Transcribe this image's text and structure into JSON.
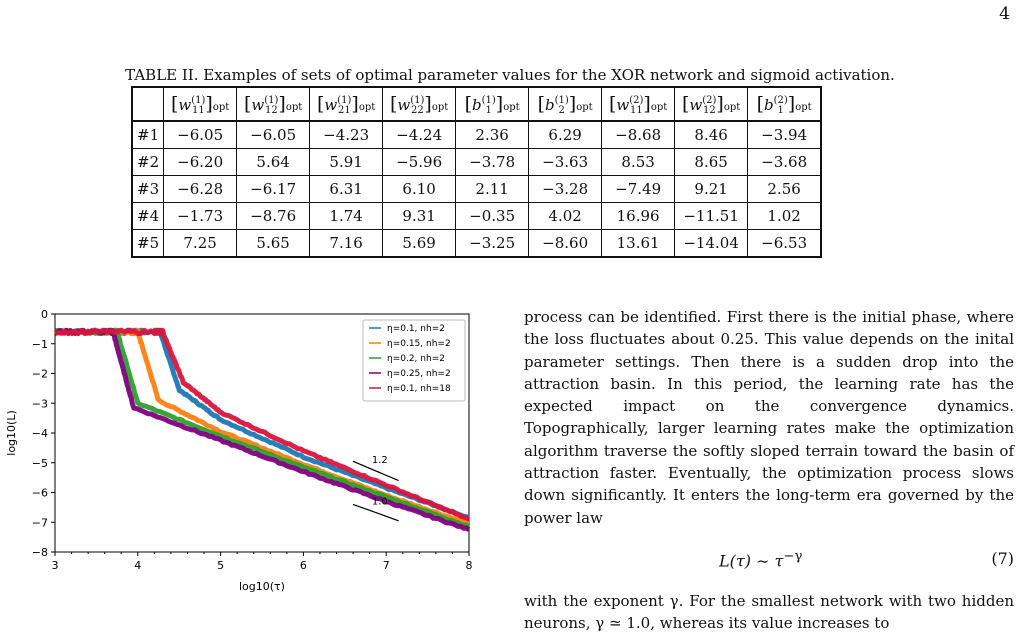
{
  "page_number": "4",
  "table": {
    "caption": "TABLE II. Examples of sets of optimal parameter values for the XOR network and sigmoid activation.",
    "headers": [
      {
        "sym": "w",
        "sup": "(1)",
        "sub": "11",
        "opt": "opt"
      },
      {
        "sym": "w",
        "sup": "(1)",
        "sub": "12",
        "opt": "opt"
      },
      {
        "sym": "w",
        "sup": "(1)",
        "sub": "21",
        "opt": "opt"
      },
      {
        "sym": "w",
        "sup": "(1)",
        "sub": "22",
        "opt": "opt"
      },
      {
        "sym": "b",
        "sup": "(1)",
        "sub": "1",
        "opt": "opt"
      },
      {
        "sym": "b",
        "sup": "(1)",
        "sub": "2",
        "opt": "opt"
      },
      {
        "sym": "w",
        "sup": "(2)",
        "sub": "11",
        "opt": "opt"
      },
      {
        "sym": "w",
        "sup": "(2)",
        "sub": "12",
        "opt": "opt"
      },
      {
        "sym": "b",
        "sup": "(2)",
        "sub": "1",
        "opt": "opt"
      }
    ],
    "rows": [
      {
        "label": "#1",
        "values": [
          "−6.05",
          "−6.05",
          "−4.23",
          "−4.24",
          "2.36",
          "6.29",
          "−8.68",
          "8.46",
          "−3.94"
        ]
      },
      {
        "label": "#2",
        "values": [
          "−6.20",
          "5.64",
          "5.91",
          "−5.96",
          "−3.78",
          "−3.63",
          "8.53",
          "8.65",
          "−3.68"
        ]
      },
      {
        "label": "#3",
        "values": [
          "−6.28",
          "−6.17",
          "6.31",
          "6.10",
          "2.11",
          "−3.28",
          "−7.49",
          "9.21",
          "2.56"
        ]
      },
      {
        "label": "#4",
        "values": [
          "−1.73",
          "−8.76",
          "1.74",
          "9.31",
          "−0.35",
          "4.02",
          "16.96",
          "−11.51",
          "1.02"
        ]
      },
      {
        "label": "#5",
        "values": [
          "7.25",
          "5.65",
          "7.16",
          "5.69",
          "−3.25",
          "−8.60",
          "13.61",
          "−14.04",
          "−6.53"
        ]
      }
    ]
  },
  "chart_data": {
    "type": "line",
    "xlabel": "log10(τ)",
    "ylabel": "log10(L)",
    "xlim": [
      3,
      8
    ],
    "ylim": [
      -8,
      0
    ],
    "x_ticks": [
      "3",
      "4",
      "5",
      "6",
      "7",
      "8"
    ],
    "y_ticks": [
      "0",
      "−1",
      "−2",
      "−3",
      "−4",
      "−5",
      "−6",
      "−7",
      "−8"
    ],
    "legend_position": "top-right",
    "series": [
      {
        "name": "η=0.1, nh=2",
        "color": "#1f77b4",
        "drop_x": 4.27,
        "drop_to_y": -2.55,
        "x": [
          3,
          4.2,
          4.27,
          4.5,
          5,
          6,
          7,
          8
        ],
        "y": [
          -0.6,
          -0.6,
          -0.6,
          -2.55,
          -3.55,
          -4.8,
          -5.85,
          -6.85
        ]
      },
      {
        "name": "η=0.15, nh=2",
        "color": "#ff7f0e",
        "drop_x": 4.0,
        "drop_to_y": -2.9,
        "x": [
          3,
          3.95,
          4.0,
          4.25,
          5,
          6,
          7,
          8
        ],
        "y": [
          -0.6,
          -0.6,
          -0.6,
          -2.9,
          -3.95,
          -5.05,
          -6.1,
          -7.05
        ]
      },
      {
        "name": "η=0.2, nh=2",
        "color": "#2ca02c",
        "drop_x": 3.75,
        "drop_to_y": -3.0,
        "x": [
          3,
          3.7,
          3.75,
          4.0,
          5,
          6,
          7,
          8
        ],
        "y": [
          -0.6,
          -0.6,
          -0.6,
          -3.0,
          -4.1,
          -5.15,
          -6.15,
          -7.15
        ]
      },
      {
        "name": "η=0.25, nh=2",
        "color": "#800080",
        "drop_x": 3.7,
        "drop_to_y": -3.15,
        "x": [
          3,
          3.68,
          3.7,
          3.95,
          5,
          6,
          7,
          8
        ],
        "y": [
          -0.6,
          -0.6,
          -0.6,
          -3.15,
          -4.25,
          -5.3,
          -6.3,
          -7.25
        ]
      },
      {
        "name": "η=0.1, nh=18",
        "color": "#dc143c",
        "drop_x": 4.3,
        "drop_to_y": -2.3,
        "x": [
          3,
          4.2,
          4.3,
          4.55,
          5,
          6,
          7,
          8
        ],
        "y": [
          -0.6,
          -0.6,
          -0.6,
          -2.3,
          -3.3,
          -4.6,
          -5.75,
          -6.9
        ]
      }
    ],
    "annotations": [
      {
        "text": "1.2",
        "x1": 6.6,
        "y1": -4.95,
        "x2": 7.15,
        "y2": -5.6
      },
      {
        "text": "1.0",
        "x1": 6.6,
        "y1": -6.4,
        "x2": 7.15,
        "y2": -6.95
      }
    ]
  },
  "body": {
    "paragraph": "process can be identified. First there is the initial phase, where the loss fluctuates about 0.25. This value depends on the inital parameter settings. Then there is a sudden drop into the attraction basin. In this period, the learning rate has the expected impact on the convergence dynamics. Topographically, larger learning rates make the optimization algorithm traverse the softly sloped terrain toward the basin of attraction faster. Eventually, the optimization process slows down significantly. It enters the long-term era governed by the power law",
    "equation_lhs": "L(τ) ∼ τ",
    "equation_exp": "−γ",
    "equation_number": "(7)",
    "after_equation": "with the exponent γ. For the smallest network with two hidden neurons, γ ≃ 1.0, whereas its value increases to"
  }
}
